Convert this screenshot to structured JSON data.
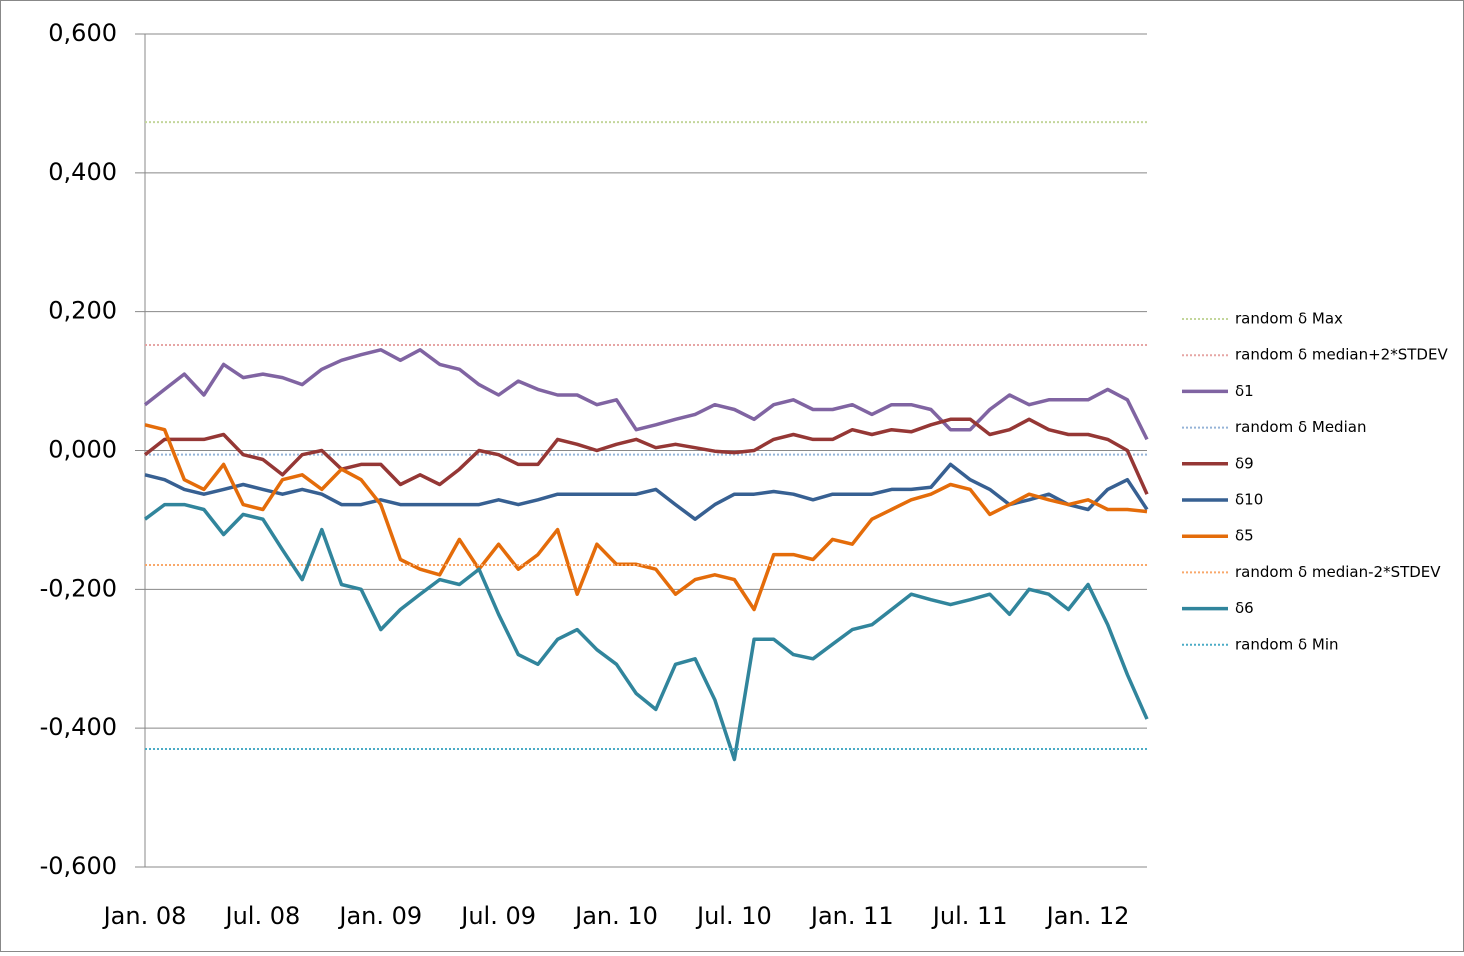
{
  "chart_data": {
    "type": "line",
    "categories": [
      "Jan. 08",
      null,
      null,
      null,
      null,
      null,
      "Jul. 08",
      null,
      null,
      null,
      null,
      null,
      "Jan. 09",
      null,
      null,
      null,
      null,
      null,
      "Jul. 09",
      null,
      null,
      null,
      null,
      null,
      "Jan. 10",
      null,
      null,
      null,
      null,
      null,
      "Jul. 10",
      null,
      null,
      null,
      null,
      null,
      "Jan. 11",
      null,
      null,
      null,
      null,
      null,
      "Jul. 11",
      null,
      null,
      null,
      null,
      null,
      "Jan. 12",
      null,
      null,
      null
    ],
    "ylim": [
      -0.6,
      0.6
    ],
    "yticks": [
      {
        "value": -0.6,
        "label": "-0,600"
      },
      {
        "value": -0.4,
        "label": "-0,400"
      },
      {
        "value": -0.2,
        "label": "-0,200"
      },
      {
        "value": 0,
        "label": "0,000"
      },
      {
        "value": 0.2,
        "label": "0,200"
      },
      {
        "value": 0.4,
        "label": "0,400"
      },
      {
        "value": 0.6,
        "label": "0,600"
      }
    ],
    "grid": true,
    "legend": "right",
    "series": [
      {
        "name": "random δ Max",
        "color": "#c3d69b",
        "dashed": true,
        "value": 0.473
      },
      {
        "name": "random δ median+2*STDEV",
        "color": "#e6a5a4",
        "dashed": true,
        "value": 0.152
      },
      {
        "name": "δ1",
        "color": "#8064a2",
        "values": [
          0.066,
          0.088,
          0.11,
          0.08,
          0.124,
          0.105,
          0.11,
          0.105,
          0.095,
          0.117,
          0.13,
          0.138,
          0.145,
          0.13,
          0.145,
          0.124,
          0.117,
          0.095,
          0.08,
          0.1,
          0.088,
          0.08,
          0.08,
          0.066,
          0.073,
          0.03,
          0.037,
          0.045,
          0.052,
          0.066,
          0.059,
          0.045,
          0.066,
          0.073,
          0.059,
          0.059,
          0.066,
          0.052,
          0.066,
          0.066,
          0.059,
          0.03,
          0.03,
          0.059,
          0.08,
          0.066,
          0.073,
          0.073,
          0.073,
          0.088,
          0.073,
          0.016
        ]
      },
      {
        "name": "random δ Median",
        "color": "#95b3d7",
        "dashed": true,
        "value": -0.006
      },
      {
        "name": "δ9",
        "color": "#953735",
        "values": [
          -0.006,
          0.016,
          0.016,
          0.016,
          0.023,
          -0.006,
          -0.013,
          -0.035,
          -0.006,
          0.0,
          -0.027,
          -0.02,
          -0.02,
          -0.049,
          -0.035,
          -0.049,
          -0.027,
          0.0,
          -0.006,
          -0.02,
          -0.02,
          0.016,
          0.009,
          0.0,
          0.009,
          0.016,
          0.004,
          0.009,
          0.004,
          -0.001,
          -0.003,
          0.0,
          0.016,
          0.023,
          0.016,
          0.016,
          0.03,
          0.023,
          0.03,
          0.027,
          0.037,
          0.045,
          0.045,
          0.023,
          0.03,
          0.045,
          0.03,
          0.023,
          0.023,
          0.016,
          0.0,
          -0.063
        ]
      },
      {
        "name": "δ10",
        "color": "#376092",
        "values": [
          -0.035,
          -0.042,
          -0.056,
          -0.063,
          -0.056,
          -0.049,
          -0.056,
          -0.063,
          -0.056,
          -0.063,
          -0.078,
          -0.078,
          -0.071,
          -0.078,
          -0.078,
          -0.078,
          -0.078,
          -0.078,
          -0.071,
          -0.078,
          -0.071,
          -0.063,
          -0.063,
          -0.063,
          -0.063,
          -0.063,
          -0.056,
          -0.078,
          -0.099,
          -0.078,
          -0.063,
          -0.063,
          -0.059,
          -0.063,
          -0.071,
          -0.063,
          -0.063,
          -0.063,
          -0.056,
          -0.056,
          -0.053,
          -0.02,
          -0.042,
          -0.056,
          -0.078,
          -0.071,
          -0.063,
          -0.078,
          -0.085,
          -0.056,
          -0.042,
          -0.085
        ]
      },
      {
        "name": "δ5",
        "color": "#e46c0a",
        "values": [
          0.037,
          0.03,
          -0.042,
          -0.056,
          -0.02,
          -0.078,
          -0.085,
          -0.042,
          -0.035,
          -0.056,
          -0.027,
          -0.042,
          -0.078,
          -0.157,
          -0.171,
          -0.179,
          -0.128,
          -0.171,
          -0.135,
          -0.171,
          -0.15,
          -0.114,
          -0.207,
          -0.135,
          -0.164,
          -0.164,
          -0.171,
          -0.207,
          -0.186,
          -0.179,
          -0.186,
          -0.229,
          -0.15,
          -0.15,
          -0.157,
          -0.128,
          -0.135,
          -0.099,
          -0.085,
          -0.071,
          -0.063,
          -0.049,
          -0.056,
          -0.092,
          -0.078,
          -0.063,
          -0.071,
          -0.078,
          -0.071,
          -0.085,
          -0.085,
          -0.088
        ]
      },
      {
        "name": "random δ median-2*STDEV",
        "color": "#f9a86a",
        "dashed": true,
        "value": -0.165
      },
      {
        "name": "δ6",
        "color": "#31859c",
        "values": [
          -0.099,
          -0.078,
          -0.078,
          -0.085,
          -0.121,
          -0.092,
          -0.099,
          -0.143,
          -0.186,
          -0.114,
          -0.193,
          -0.2,
          -0.258,
          -0.229,
          -0.207,
          -0.186,
          -0.193,
          -0.171,
          -0.236,
          -0.294,
          -0.308,
          -0.272,
          -0.258,
          -0.287,
          -0.308,
          -0.35,
          -0.373,
          -0.308,
          -0.3,
          -0.359,
          -0.445,
          -0.272,
          -0.272,
          -0.294,
          -0.3,
          -0.279,
          -0.258,
          -0.251,
          -0.229,
          -0.207,
          -0.215,
          -0.222,
          -0.215,
          -0.207,
          -0.236,
          -0.2,
          -0.207,
          -0.229,
          -0.193,
          -0.251,
          -0.323,
          -0.387
        ]
      },
      {
        "name": "random δ Min",
        "color": "#4bacc6",
        "dashed": true,
        "value": -0.43
      }
    ]
  }
}
